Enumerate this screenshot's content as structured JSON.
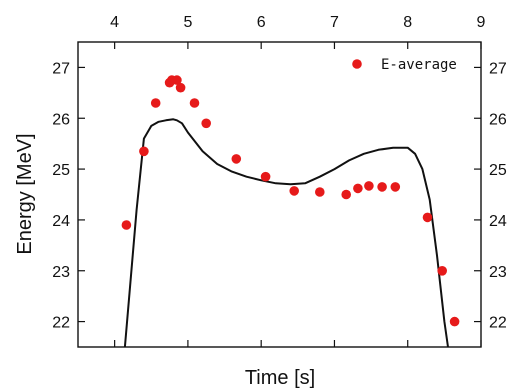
{
  "colors": {
    "marker": "#e61a1a",
    "curve": "#111111",
    "frame": "#111111",
    "background": "#ffffff"
  },
  "chart_data": {
    "type": "scatter",
    "title": "",
    "xlabel": "Time [s]",
    "ylabel": "Energy [MeV]",
    "xlim": [
      3.5,
      9.0
    ],
    "ylim": [
      21.5,
      27.5
    ],
    "xticks": [
      4,
      5,
      6,
      7,
      8,
      9
    ],
    "yticks": [
      22,
      23,
      24,
      25,
      26,
      27
    ],
    "x_tick_position": "top",
    "y_ticks_mirrored_right": true,
    "grid": false,
    "legend_position": "top-right",
    "series": [
      {
        "name": "E-average",
        "kind": "scatter",
        "marker": "circle",
        "color": "#e61a1a",
        "x": [
          4.16,
          4.4,
          4.56,
          4.75,
          4.78,
          4.85,
          4.9,
          5.09,
          5.25,
          5.66,
          6.06,
          6.45,
          6.8,
          7.16,
          7.32,
          7.47,
          7.65,
          7.83,
          8.27,
          8.47,
          8.64
        ],
        "y": [
          23.9,
          25.35,
          26.3,
          26.7,
          26.75,
          26.75,
          26.6,
          26.3,
          25.9,
          25.2,
          24.85,
          24.57,
          24.55,
          24.5,
          24.62,
          24.67,
          24.65,
          24.65,
          24.05,
          23.0,
          22.0
        ]
      },
      {
        "kind": "line",
        "color": "#111111",
        "x": [
          4.14,
          4.3,
          4.4,
          4.5,
          4.6,
          4.7,
          4.8,
          4.85,
          4.92,
          5.0,
          5.2,
          5.4,
          5.6,
          5.8,
          6.0,
          6.2,
          6.4,
          6.6,
          6.8,
          7.0,
          7.2,
          7.4,
          7.6,
          7.8,
          8.0,
          8.1,
          8.2,
          8.3,
          8.4,
          8.5,
          8.55
        ],
        "y": [
          21.5,
          24.2,
          25.6,
          25.85,
          25.93,
          25.96,
          25.98,
          25.96,
          25.9,
          25.72,
          25.35,
          25.1,
          24.95,
          24.85,
          24.78,
          24.72,
          24.7,
          24.72,
          24.85,
          25.0,
          25.17,
          25.3,
          25.38,
          25.42,
          25.42,
          25.3,
          25.0,
          24.4,
          23.3,
          22.0,
          21.5
        ]
      }
    ]
  }
}
